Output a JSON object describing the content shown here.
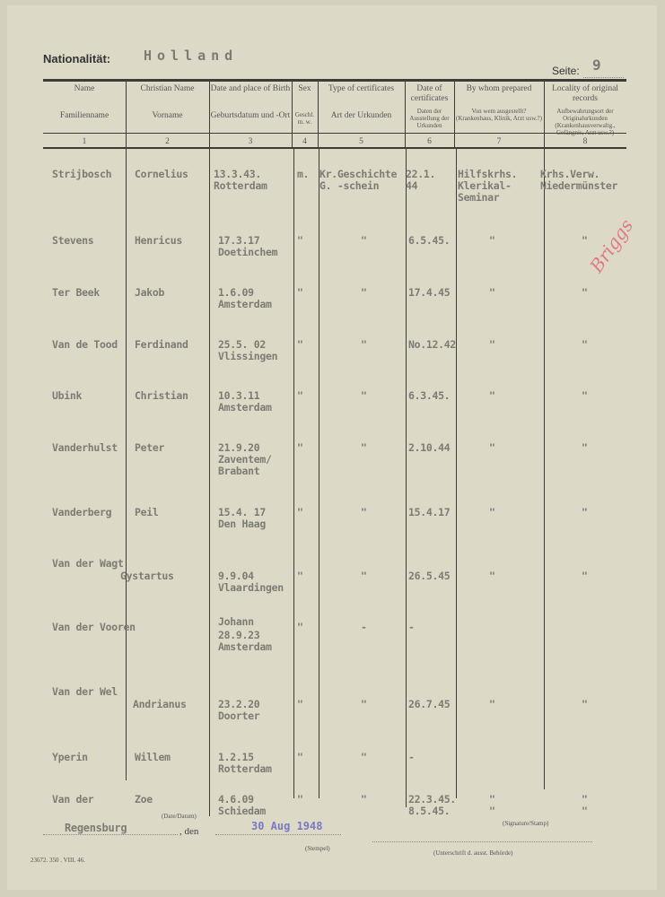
{
  "header": {
    "nationality_label": "Nationalität:",
    "nationality_value": "Holland",
    "page_label": "Seite:",
    "page_value": "9"
  },
  "columns": [
    {
      "en": "Name",
      "de": "Familienname",
      "num": "1"
    },
    {
      "en": "Christian Name",
      "de": "Vorname",
      "num": "2"
    },
    {
      "en": "Date and place of Birth",
      "de": "Geburtsdatum und -Ort",
      "num": "3"
    },
    {
      "en": "Sex",
      "de": "Geschl. m. w.",
      "num": "4"
    },
    {
      "en": "Type of certificates",
      "de": "Art der Urkunden",
      "num": "5"
    },
    {
      "en": "Date of certificates",
      "de": "Daten der Ausstellung der Urkunden",
      "num": "6"
    },
    {
      "en": "By whom prepared",
      "de": "Von wem ausgestellt? (Krankenhaus, Klinik, Arzt usw.?)",
      "num": "7"
    },
    {
      "en": "Locality of original records",
      "de": "Aufbewahrungsort der Originalurkunden (Krankenhausverwaltg., Gefängnis, Arzt usw.?)",
      "num": "8"
    }
  ],
  "rows": [
    {
      "name": "Strijbosch",
      "christian": "Cornelius",
      "birth": "13.3.43.\nRotterdam",
      "sex": "m.",
      "type": "Kr.Geschichte\nG. -schein",
      "date": "22.1.\n44",
      "by_whom": "Hilfskrhs.\nKlerikal-\nSeminar",
      "locality": "Krhs.Verw.\nNiedermünster"
    },
    {
      "name": "Stevens",
      "christian": "Henricus",
      "birth": "17.3.17\nDoetinchem",
      "sex": "\"",
      "type": "\"",
      "date": "6.5.45.",
      "by_whom": "\"",
      "locality": "\""
    },
    {
      "name": "Ter Beek",
      "christian": "Jakob",
      "birth": "1.6.09\nAmsterdam",
      "sex": "\"",
      "type": "\"",
      "date": "17.4.45",
      "by_whom": "\"",
      "locality": "\""
    },
    {
      "name": "Van de Tood",
      "christian": "Ferdinand",
      "birth": "25.5. 02\nVlissingen",
      "sex": "\"",
      "type": "\"",
      "date": "No.12.42",
      "by_whom": "\"",
      "locality": "\""
    },
    {
      "name": "Ubink",
      "christian": "Christian",
      "birth": "10.3.11\nAmsterdam",
      "sex": "\"",
      "type": "\"",
      "date": "6.3.45.",
      "by_whom": "\"",
      "locality": "\""
    },
    {
      "name": "Vanderhulst",
      "christian": "Peter",
      "birth": "21.9.20\nZaventem/\nBrabant",
      "sex": "\"",
      "type": "\"",
      "date": "2.10.44",
      "by_whom": "\"",
      "locality": "\""
    },
    {
      "name": "Vanderberg",
      "christian": "Peil",
      "birth": "15.4. 17\nDen Haag",
      "sex": "\"",
      "type": "\"",
      "date": "15.4.17",
      "by_whom": "\"",
      "locality": "\""
    },
    {
      "name": "Van der Wagt",
      "christian": "Gystartus",
      "birth": "9.9.04\nVlaardingen",
      "sex": "\"",
      "type": "\"",
      "date": "26.5.45",
      "by_whom": "\"",
      "locality": "\""
    },
    {
      "name": "Van der Vooren",
      "christian": "Johann",
      "birth": "28.9.23\nAmsterdam",
      "sex": "\"",
      "type": "-",
      "date": "-",
      "by_whom": "",
      "locality": ""
    },
    {
      "name": "Van der Wel",
      "christian": "Andrianus",
      "birth": "23.2.20\nDoorter",
      "sex": "\"",
      "type": "\"",
      "date": "26.7.45",
      "by_whom": "\"",
      "locality": "\""
    },
    {
      "name": "Yperin",
      "christian": "Willem",
      "birth": "1.2.15\nRotterdam",
      "sex": "\"",
      "type": "\"",
      "date": "-",
      "by_whom": "",
      "locality": ""
    },
    {
      "name": "Van der",
      "christian": "Zoe",
      "birth": "4.6.09\nSchiedam",
      "sex": "\"",
      "type": "\"",
      "date": "22.3.45.\n8.5.45.",
      "by_whom": "\"\n\"",
      "locality": "\"\n\""
    }
  ],
  "footer": {
    "place": "Regensburg",
    "den_label": ", den",
    "date_label": "(Date/Datum)",
    "stamp_date": "30 Aug 1948",
    "stamp_label": "(Stempel)",
    "signature_label": "(Signature/Stamp)",
    "authority_label": "(Unterschrift d. ausst. Behörde)",
    "print_code": "23672. 350 . VIII. 46."
  },
  "handwriting": "Briggs",
  "colors": {
    "paper": "#dcd9c6",
    "typewriter": "#7d7c74",
    "stamp": "#7b78c4",
    "handwriting": "#e07a86"
  }
}
